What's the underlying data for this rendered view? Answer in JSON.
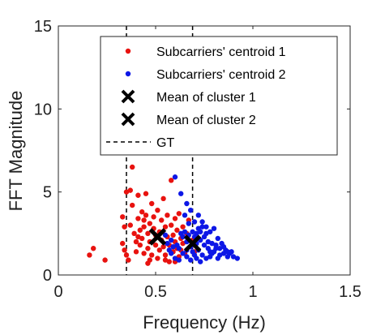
{
  "chart_data": {
    "type": "scatter",
    "xlabel": "Frequency (Hz)",
    "ylabel": "FFT Magnitude",
    "xlim": [
      0,
      1.5
    ],
    "ylim": [
      0,
      15
    ],
    "xticks": [
      0,
      0.5,
      1,
      1.5
    ],
    "yticks": [
      0,
      5,
      10,
      15
    ],
    "xtick_labels": [
      "0",
      "0.5",
      "1",
      "1.5"
    ],
    "ytick_labels": [
      "0",
      "5",
      "10",
      "15"
    ],
    "grid": false,
    "legend_position": "top-right",
    "legend": [
      "Subcarriers' centroid 1",
      "Subcarriers' centroid 2",
      "Mean of cluster 1",
      "Mean of cluster 2",
      "GT"
    ],
    "series": [
      {
        "name": "Subcarriers' centroid 1",
        "color": "#e8120f",
        "marker": "dot",
        "points": [
          [
            0.18,
            1.6
          ],
          [
            0.16,
            1.2
          ],
          [
            0.24,
            0.9
          ],
          [
            0.33,
            1.9
          ],
          [
            0.34,
            1.5
          ],
          [
            0.35,
            1.2
          ],
          [
            0.36,
            0.9
          ],
          [
            0.33,
            3.5
          ],
          [
            0.34,
            2.9
          ],
          [
            0.35,
            5.0
          ],
          [
            0.37,
            5.1
          ],
          [
            0.38,
            6.5
          ],
          [
            0.38,
            4.2
          ],
          [
            0.37,
            3.0
          ],
          [
            0.39,
            2.5
          ],
          [
            0.4,
            2.0
          ],
          [
            0.4,
            1.4
          ],
          [
            0.41,
            4.8
          ],
          [
            0.41,
            3.4
          ],
          [
            0.42,
            2.7
          ],
          [
            0.42,
            1.8
          ],
          [
            0.43,
            3.8
          ],
          [
            0.43,
            2.2
          ],
          [
            0.44,
            1.3
          ],
          [
            0.44,
            2.9
          ],
          [
            0.45,
            4.9
          ],
          [
            0.45,
            3.6
          ],
          [
            0.46,
            2.5
          ],
          [
            0.46,
            1.6
          ],
          [
            0.46,
            0.7
          ],
          [
            0.47,
            3.1
          ],
          [
            0.47,
            2.0
          ],
          [
            0.48,
            4.3
          ],
          [
            0.48,
            1.2
          ],
          [
            0.49,
            2.8
          ],
          [
            0.49,
            3.5
          ],
          [
            0.5,
            1.8
          ],
          [
            0.5,
            2.4
          ],
          [
            0.51,
            3.9
          ],
          [
            0.51,
            1.0
          ],
          [
            0.52,
            2.6
          ],
          [
            0.52,
            1.5
          ],
          [
            0.53,
            3.3
          ],
          [
            0.53,
            2.1
          ],
          [
            0.54,
            1.7
          ],
          [
            0.54,
            4.6
          ],
          [
            0.55,
            2.9
          ],
          [
            0.55,
            1.2
          ],
          [
            0.56,
            3.6
          ],
          [
            0.56,
            2.3
          ],
          [
            0.57,
            1.8
          ],
          [
            0.57,
            0.8
          ],
          [
            0.58,
            5.7
          ],
          [
            0.58,
            3.0
          ],
          [
            0.59,
            2.4
          ],
          [
            0.59,
            1.4
          ],
          [
            0.6,
            3.4
          ],
          [
            0.6,
            2.0
          ],
          [
            0.61,
            1.6
          ],
          [
            0.61,
            2.7
          ],
          [
            0.62,
            3.7
          ],
          [
            0.62,
            1.1
          ],
          [
            0.63,
            2.2
          ],
          [
            0.63,
            1.5
          ],
          [
            0.64,
            2.9
          ],
          [
            0.64,
            1.9
          ],
          [
            0.65,
            1.3
          ],
          [
            0.66,
            2.5
          ],
          [
            0.67,
            3.3
          ],
          [
            0.68,
            1.7
          ],
          [
            0.69,
            2.1
          ],
          [
            0.7,
            1.4
          ],
          [
            0.47,
            0.9
          ],
          [
            0.55,
            0.9
          ],
          [
            0.6,
            0.8
          ],
          [
            0.44,
            3.3
          ],
          [
            0.41,
            2.3
          ]
        ]
      },
      {
        "name": "Subcarriers' centroid 2",
        "color": "#0d17e6",
        "marker": "dot",
        "points": [
          [
            0.6,
            5.9
          ],
          [
            0.63,
            4.9
          ],
          [
            0.66,
            4.3
          ],
          [
            0.68,
            3.9
          ],
          [
            0.65,
            3.6
          ],
          [
            0.67,
            3.1
          ],
          [
            0.7,
            3.2
          ],
          [
            0.72,
            2.8
          ],
          [
            0.74,
            3.2
          ],
          [
            0.76,
            2.9
          ],
          [
            0.78,
            2.6
          ],
          [
            0.8,
            2.8
          ],
          [
            0.82,
            2.2
          ],
          [
            0.84,
            1.9
          ],
          [
            0.86,
            1.5
          ],
          [
            0.88,
            1.3
          ],
          [
            0.9,
            1.1
          ],
          [
            0.92,
            1.0
          ],
          [
            0.64,
            2.3
          ],
          [
            0.66,
            2.0
          ],
          [
            0.68,
            1.7
          ],
          [
            0.7,
            2.3
          ],
          [
            0.71,
            1.9
          ],
          [
            0.73,
            2.1
          ],
          [
            0.75,
            1.8
          ],
          [
            0.77,
            1.6
          ],
          [
            0.79,
            1.3
          ],
          [
            0.81,
            1.6
          ],
          [
            0.83,
            1.2
          ],
          [
            0.85,
            1.7
          ],
          [
            0.87,
            1.4
          ],
          [
            0.62,
            1.6
          ],
          [
            0.64,
            1.3
          ],
          [
            0.66,
            1.1
          ],
          [
            0.68,
            0.9
          ],
          [
            0.7,
            1.2
          ],
          [
            0.72,
            1.5
          ],
          [
            0.74,
            1.2
          ],
          [
            0.76,
            1.0
          ],
          [
            0.78,
            1.1
          ],
          [
            0.8,
            1.4
          ],
          [
            0.58,
            1.3
          ],
          [
            0.6,
            1.0
          ],
          [
            0.62,
            0.9
          ],
          [
            0.65,
            2.6
          ],
          [
            0.67,
            2.4
          ],
          [
            0.69,
            2.6
          ],
          [
            0.71,
            2.5
          ],
          [
            0.73,
            2.6
          ],
          [
            0.75,
            2.3
          ],
          [
            0.77,
            2.0
          ],
          [
            0.79,
            1.9
          ],
          [
            0.81,
            1.8
          ],
          [
            0.83,
            1.6
          ],
          [
            0.85,
            1.3
          ],
          [
            0.87,
            1.1
          ],
          [
            0.89,
            1.4
          ],
          [
            0.72,
            3.6
          ],
          [
            0.74,
            2.9
          ],
          [
            0.76,
            2.5
          ],
          [
            0.56,
            1.9
          ],
          [
            0.58,
            2.1
          ],
          [
            0.61,
            1.8
          ],
          [
            0.63,
            2.5
          ],
          [
            0.66,
            1.5
          ],
          [
            0.69,
            1.4
          ],
          [
            0.71,
            1.0
          ],
          [
            0.73,
            0.8
          ],
          [
            0.78,
            1.4
          ],
          [
            0.82,
            1.0
          ],
          [
            0.55,
            2.4
          ],
          [
            0.57,
            1.5
          ],
          [
            0.59,
            1.7
          ]
        ]
      },
      {
        "name": "Mean of cluster 1",
        "color": "#000000",
        "marker": "x",
        "points": [
          [
            0.51,
            2.3
          ]
        ]
      },
      {
        "name": "Mean of cluster 2",
        "color": "#000000",
        "marker": "x",
        "points": [
          [
            0.69,
            1.9
          ]
        ]
      },
      {
        "name": "GT",
        "color": "#000000",
        "marker": "dashed-vline",
        "x": [
          0.35,
          0.69
        ]
      }
    ]
  }
}
